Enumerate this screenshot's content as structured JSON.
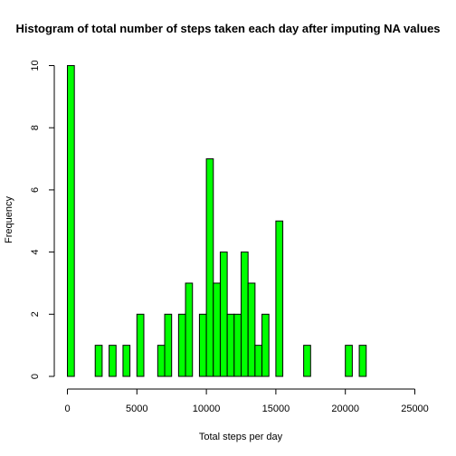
{
  "chart_data": {
    "type": "bar",
    "title": "Histogram of total number of steps taken each day after imputing NA values",
    "xlabel": "Total steps per day",
    "ylabel": "Frequency",
    "bin_width": 500,
    "xlim": [
      0,
      25000
    ],
    "ylim": [
      0,
      10
    ],
    "x_ticks": [
      0,
      5000,
      10000,
      15000,
      20000,
      25000
    ],
    "y_ticks": [
      0,
      2,
      4,
      6,
      8,
      10
    ],
    "bins": [
      {
        "start": 0,
        "count": 10
      },
      {
        "start": 2000,
        "count": 1
      },
      {
        "start": 3000,
        "count": 1
      },
      {
        "start": 4000,
        "count": 1
      },
      {
        "start": 5000,
        "count": 2
      },
      {
        "start": 6500,
        "count": 1
      },
      {
        "start": 7000,
        "count": 2
      },
      {
        "start": 8000,
        "count": 2
      },
      {
        "start": 8500,
        "count": 3
      },
      {
        "start": 9500,
        "count": 2
      },
      {
        "start": 10000,
        "count": 7
      },
      {
        "start": 10500,
        "count": 3
      },
      {
        "start": 11000,
        "count": 4
      },
      {
        "start": 11500,
        "count": 2
      },
      {
        "start": 12000,
        "count": 2
      },
      {
        "start": 12500,
        "count": 4
      },
      {
        "start": 13000,
        "count": 3
      },
      {
        "start": 13500,
        "count": 1
      },
      {
        "start": 14000,
        "count": 2
      },
      {
        "start": 15000,
        "count": 5
      },
      {
        "start": 17000,
        "count": 1
      },
      {
        "start": 20000,
        "count": 1
      },
      {
        "start": 21000,
        "count": 1
      }
    ],
    "bar_color": "#00ff00",
    "border_color": "#000000",
    "grid": false
  }
}
